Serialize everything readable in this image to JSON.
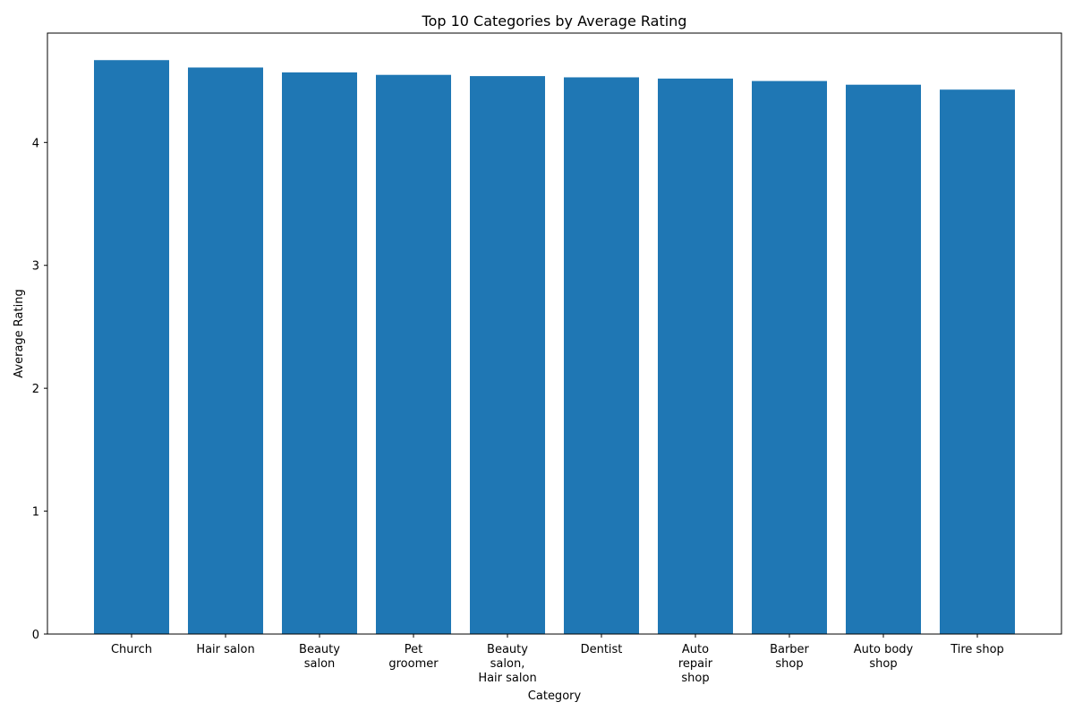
{
  "chart_data": {
    "type": "bar",
    "title": "Top 10 Categories by Average Rating",
    "xlabel": "Category",
    "ylabel": "Average Rating",
    "categories": [
      [
        "Church"
      ],
      [
        "Hair salon"
      ],
      [
        "Beauty",
        "salon"
      ],
      [
        "Pet",
        "groomer"
      ],
      [
        "Beauty",
        "salon,",
        "Hair salon"
      ],
      [
        "Dentist"
      ],
      [
        "Auto",
        "repair",
        "shop"
      ],
      [
        "Barber",
        "shop"
      ],
      [
        "Auto body",
        "shop"
      ],
      [
        "Tire shop"
      ]
    ],
    "values": [
      4.67,
      4.61,
      4.57,
      4.55,
      4.54,
      4.53,
      4.52,
      4.5,
      4.47,
      4.43
    ],
    "ylim": [
      0,
      4.89
    ],
    "yticks": [
      0,
      1,
      2,
      3,
      4
    ],
    "grid": false,
    "bar_color": "#1f77b4"
  }
}
